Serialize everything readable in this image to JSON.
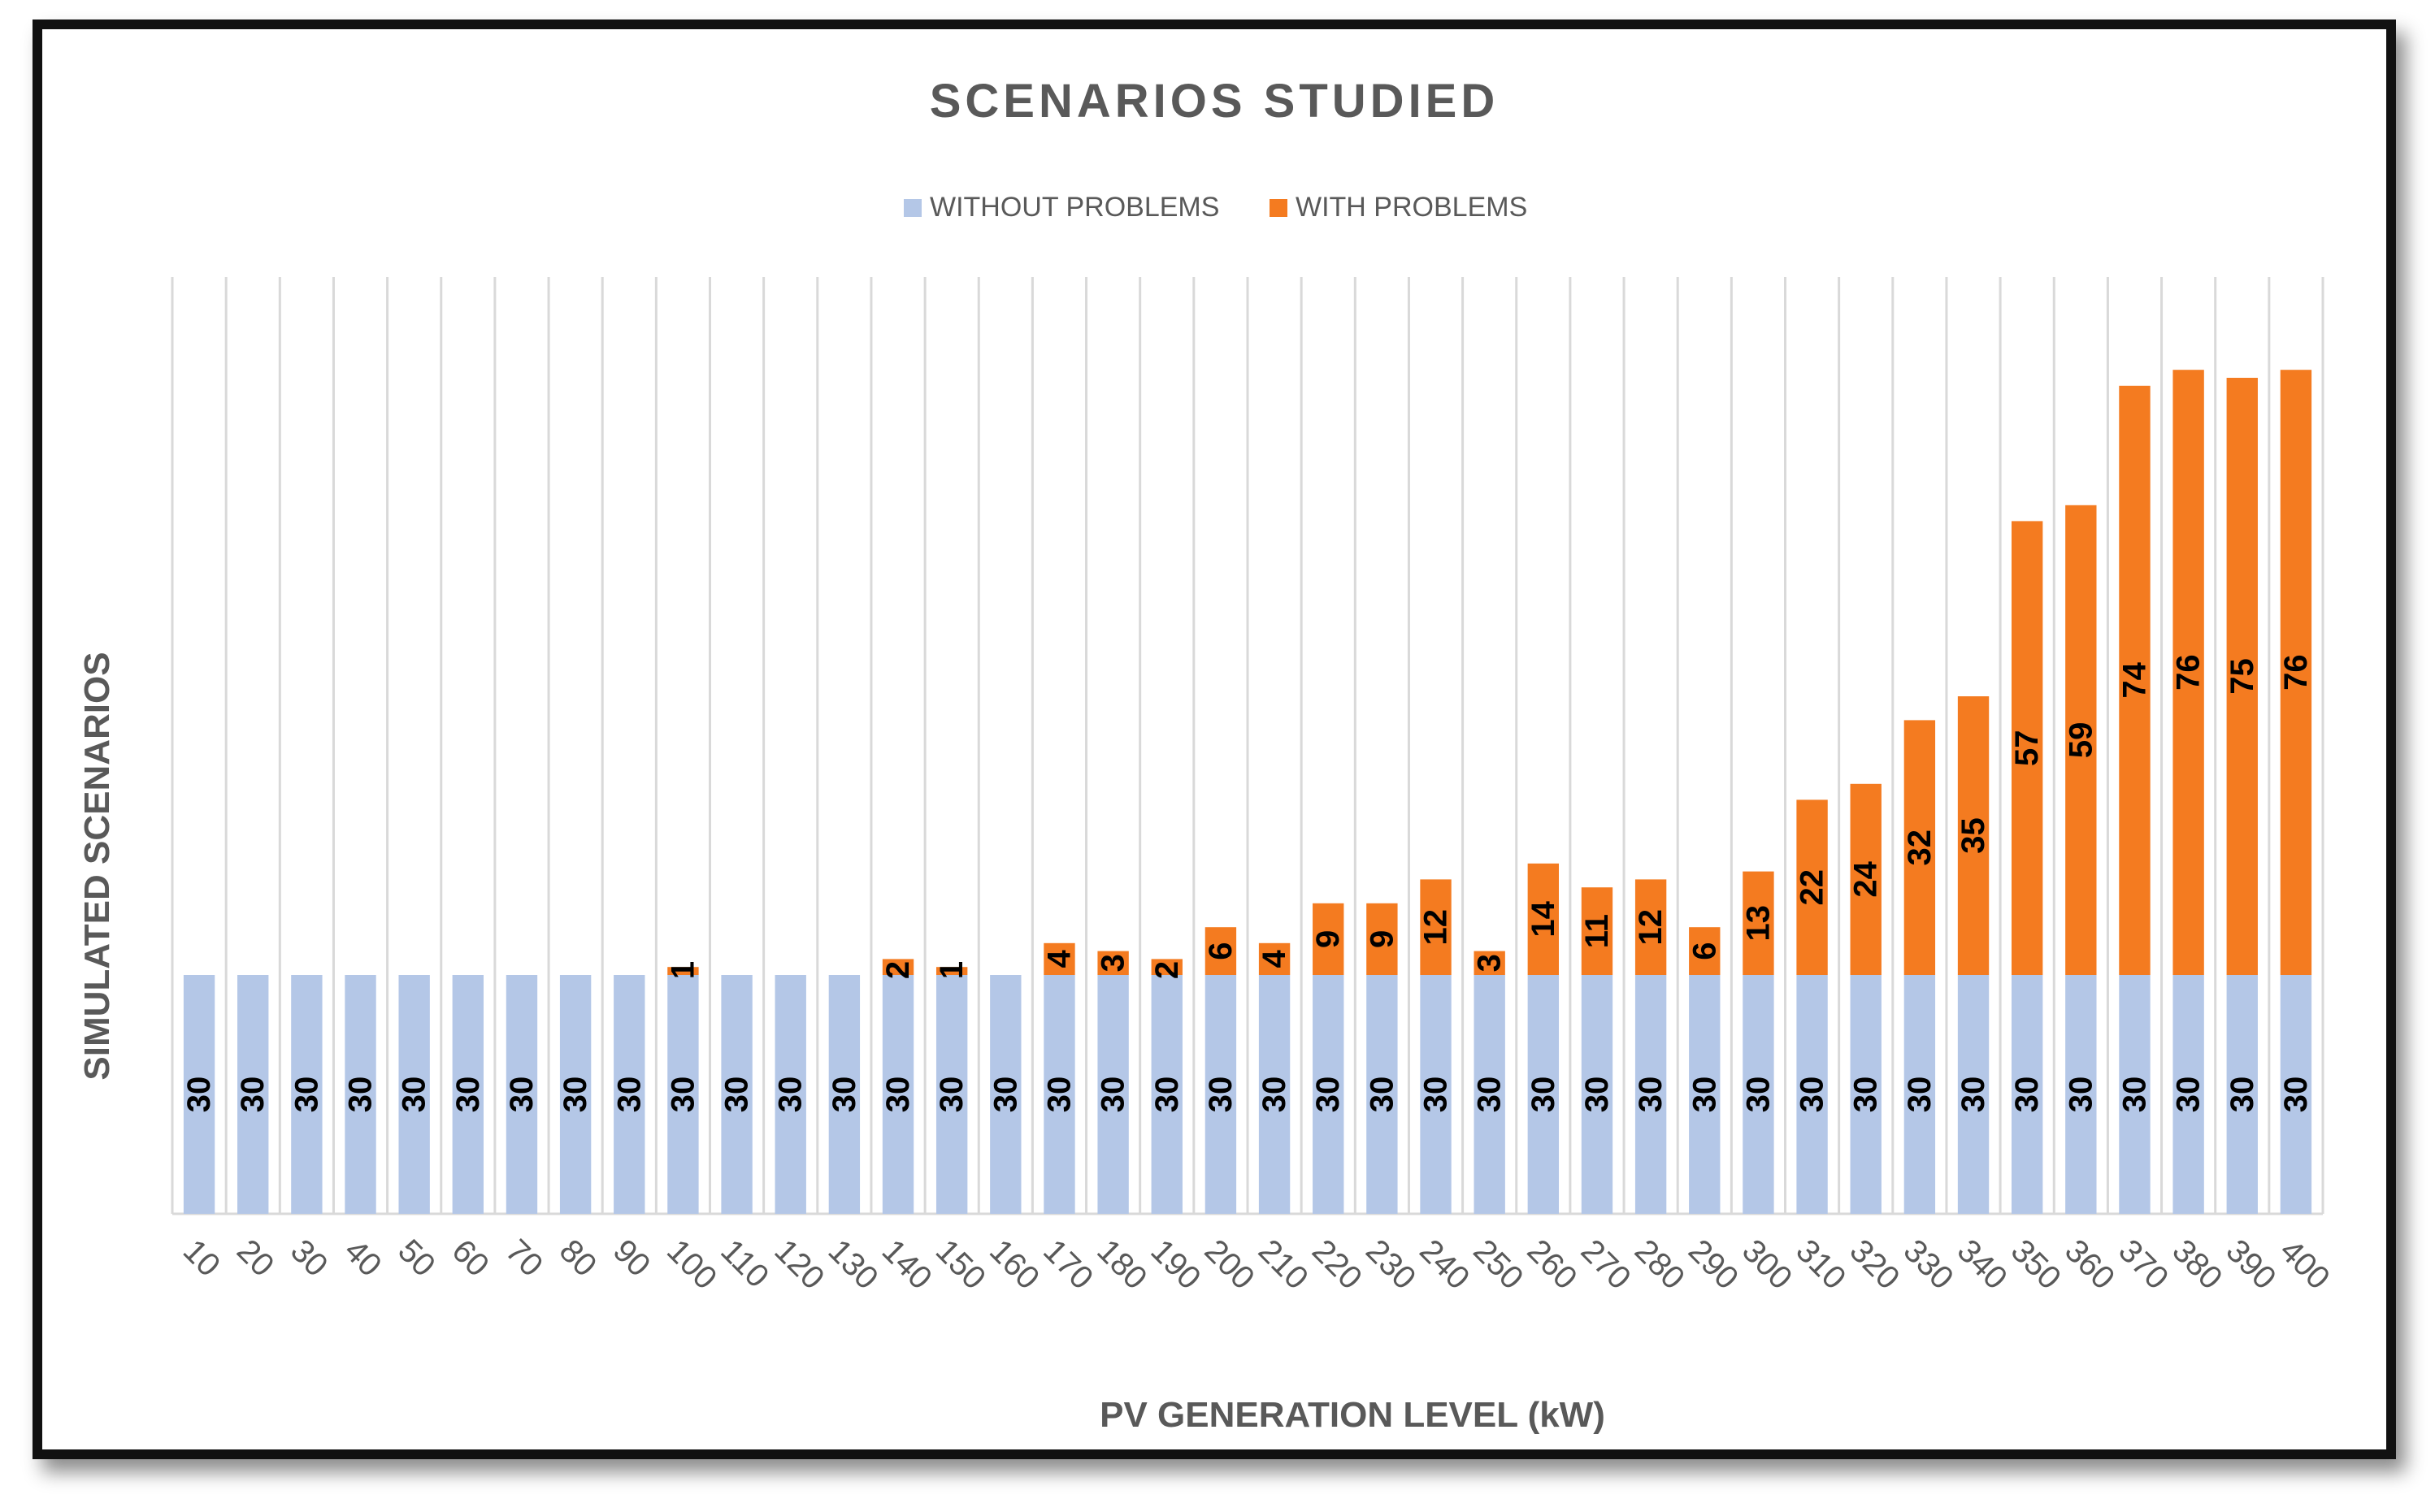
{
  "chart_data": {
    "type": "bar",
    "stacked": true,
    "title": "SCENARIOS  STUDIED",
    "xlabel": "PV GENERATION LEVEL (kW)",
    "ylabel": "SIMULATED SCENARIOS",
    "legend_position": "top-center",
    "grid": "vertical",
    "ylim": [
      0,
      120
    ],
    "categories": [
      "10",
      "20",
      "30",
      "40",
      "50",
      "60",
      "70",
      "80",
      "90",
      "100",
      "110",
      "120",
      "130",
      "140",
      "150",
      "160",
      "170",
      "180",
      "190",
      "200",
      "210",
      "220",
      "230",
      "240",
      "250",
      "260",
      "270",
      "280",
      "290",
      "300",
      "310",
      "320",
      "330",
      "340",
      "350",
      "360",
      "370",
      "380",
      "390",
      "400"
    ],
    "series": [
      {
        "name": "WITHOUT PROBLEMS",
        "color": "#b4c7e7",
        "values": [
          30,
          30,
          30,
          30,
          30,
          30,
          30,
          30,
          30,
          30,
          30,
          30,
          30,
          30,
          30,
          30,
          30,
          30,
          30,
          30,
          30,
          30,
          30,
          30,
          30,
          30,
          30,
          30,
          30,
          30,
          30,
          30,
          30,
          30,
          30,
          30,
          30,
          30,
          30,
          30
        ],
        "labels": [
          "30",
          "30",
          "30",
          "30",
          "30",
          "30",
          "30",
          "30",
          "30",
          "30",
          "30",
          "30",
          "30",
          "30",
          "30",
          "30",
          "30",
          "30",
          "30",
          "30",
          "30",
          "30",
          "30",
          "30",
          "30",
          "30",
          "30",
          "30",
          "30",
          "30",
          "30",
          "30",
          "30",
          "30",
          "30",
          "30",
          "30",
          "30",
          "30",
          "30"
        ]
      },
      {
        "name": "WITH PROBLEMS",
        "color": "#f47b20",
        "values": [
          0,
          0,
          0,
          0,
          0,
          0,
          0,
          0,
          0,
          1,
          0,
          0,
          0,
          2,
          1,
          0,
          4,
          3,
          2,
          6,
          4,
          9,
          9,
          12,
          3,
          14,
          11,
          12,
          6,
          13,
          22,
          24,
          32,
          35,
          57,
          59,
          74,
          76,
          75,
          76
        ],
        "labels": [
          "",
          "",
          "",
          "",
          "",
          "",
          "",
          "",
          "",
          "1",
          "",
          "",
          "",
          "2",
          "1",
          "",
          "4",
          "3",
          "2",
          "6",
          "4",
          "9",
          "9",
          "12",
          "3",
          "14",
          "11",
          "12",
          "6",
          "13",
          "22",
          "24",
          "32",
          "35",
          "57",
          "59",
          "74",
          "76",
          "75",
          "76"
        ]
      }
    ]
  }
}
